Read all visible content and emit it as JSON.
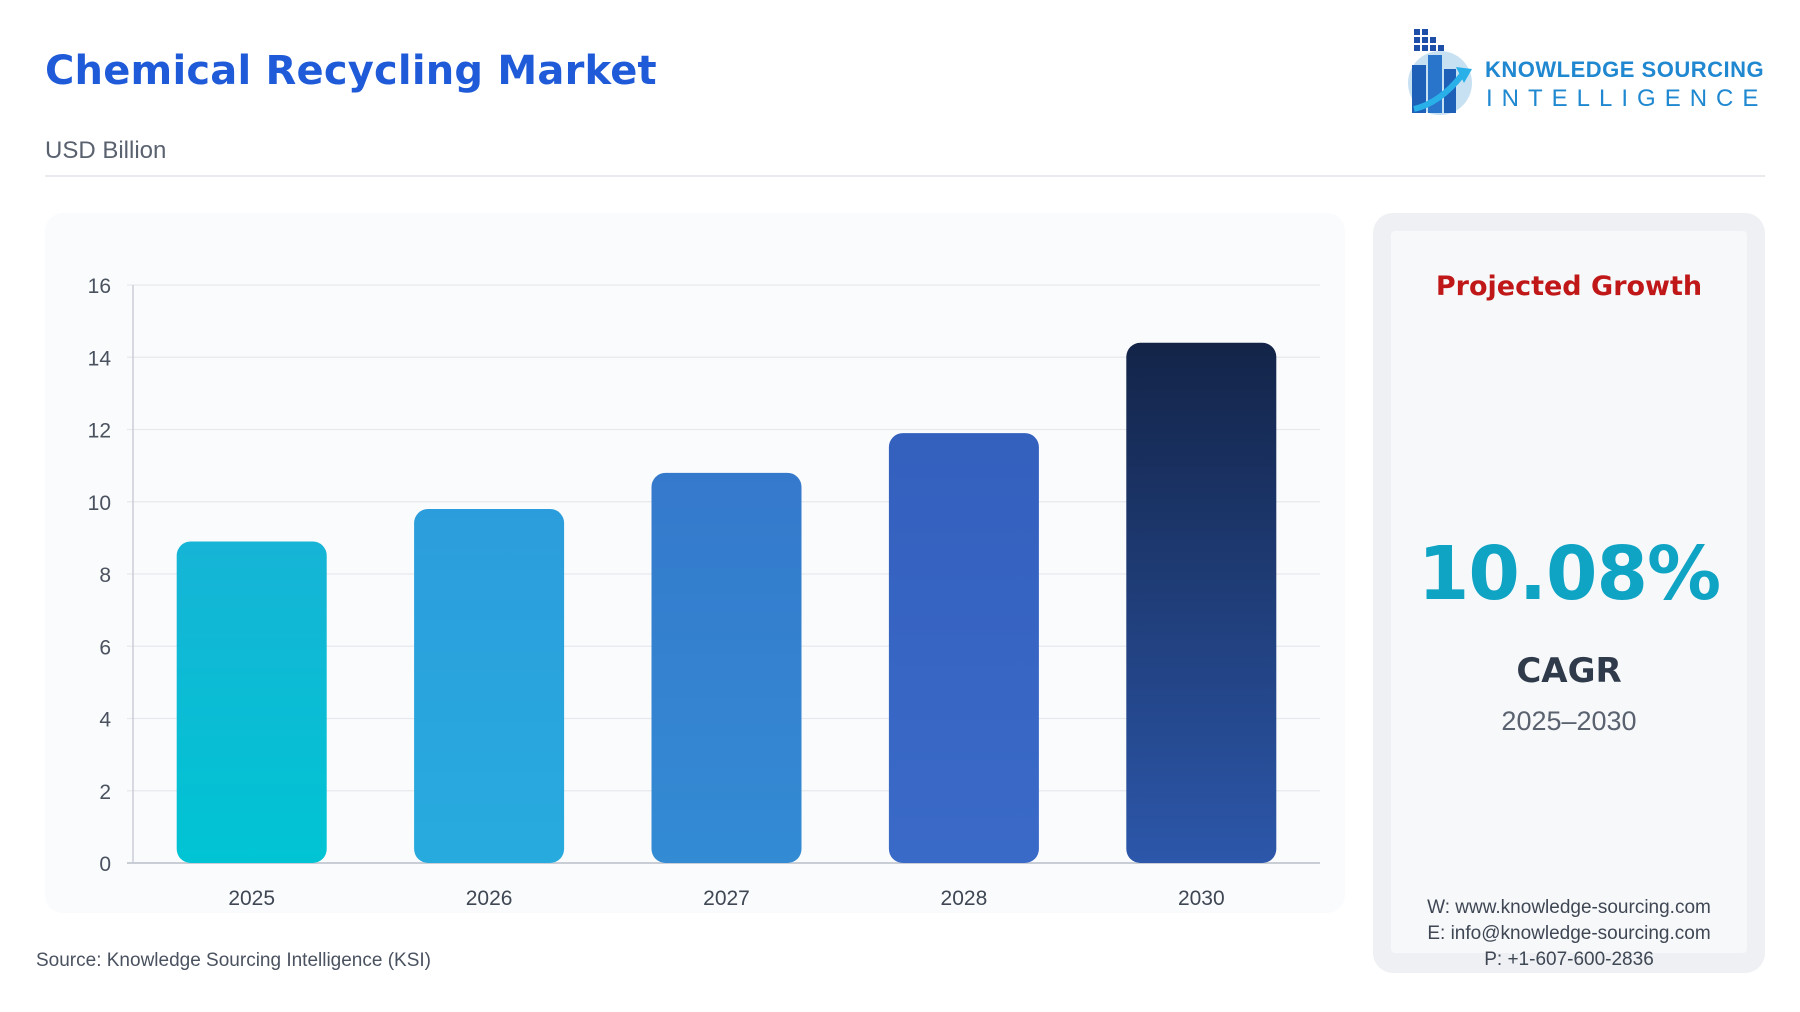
{
  "header": {
    "title": "Chemical Recycling Market",
    "subtitle": "USD Billion"
  },
  "logo": {
    "line1": "KNOWLEDGE SOURCING",
    "line2": "INTELLIGENCE",
    "icon": "building-arrow-globe-icon"
  },
  "chart_data": {
    "type": "bar",
    "title": "Chemical Recycling Market",
    "ylabel": "USD Billion",
    "xlabel": "",
    "categories": [
      "2025",
      "2026",
      "2027",
      "2028",
      "2030"
    ],
    "values": [
      8.9,
      9.8,
      10.8,
      11.9,
      14.4
    ],
    "ylim": [
      0,
      16
    ],
    "yticks": [
      "0",
      "2",
      "4",
      "6",
      "8",
      "10",
      "12",
      "14",
      "16"
    ],
    "grid": true,
    "bar_colors": [
      [
        "#16b4d6",
        "#00c4d4"
      ],
      [
        "#2c9ddc",
        "#27abde"
      ],
      [
        "#3579cc",
        "#338bd4"
      ],
      [
        "#3460be",
        "#3a6ac8"
      ],
      [
        "#132448",
        "#2c57aa"
      ]
    ]
  },
  "source": "Source: Knowledge Sourcing Intelligence (KSI)",
  "panel": {
    "heading": "Projected Growth",
    "value": "10.08%",
    "label": "CAGR",
    "range": "2025–2030",
    "website": "W: www.knowledge-sourcing.com",
    "email": "E: info@knowledge-sourcing.com",
    "phone": "P: +1-607-600-2836"
  },
  "colors": {
    "title": "#1f5bd8",
    "heading": "#c01818",
    "value": "#0fa3c4",
    "logo": "#1f88d0"
  }
}
